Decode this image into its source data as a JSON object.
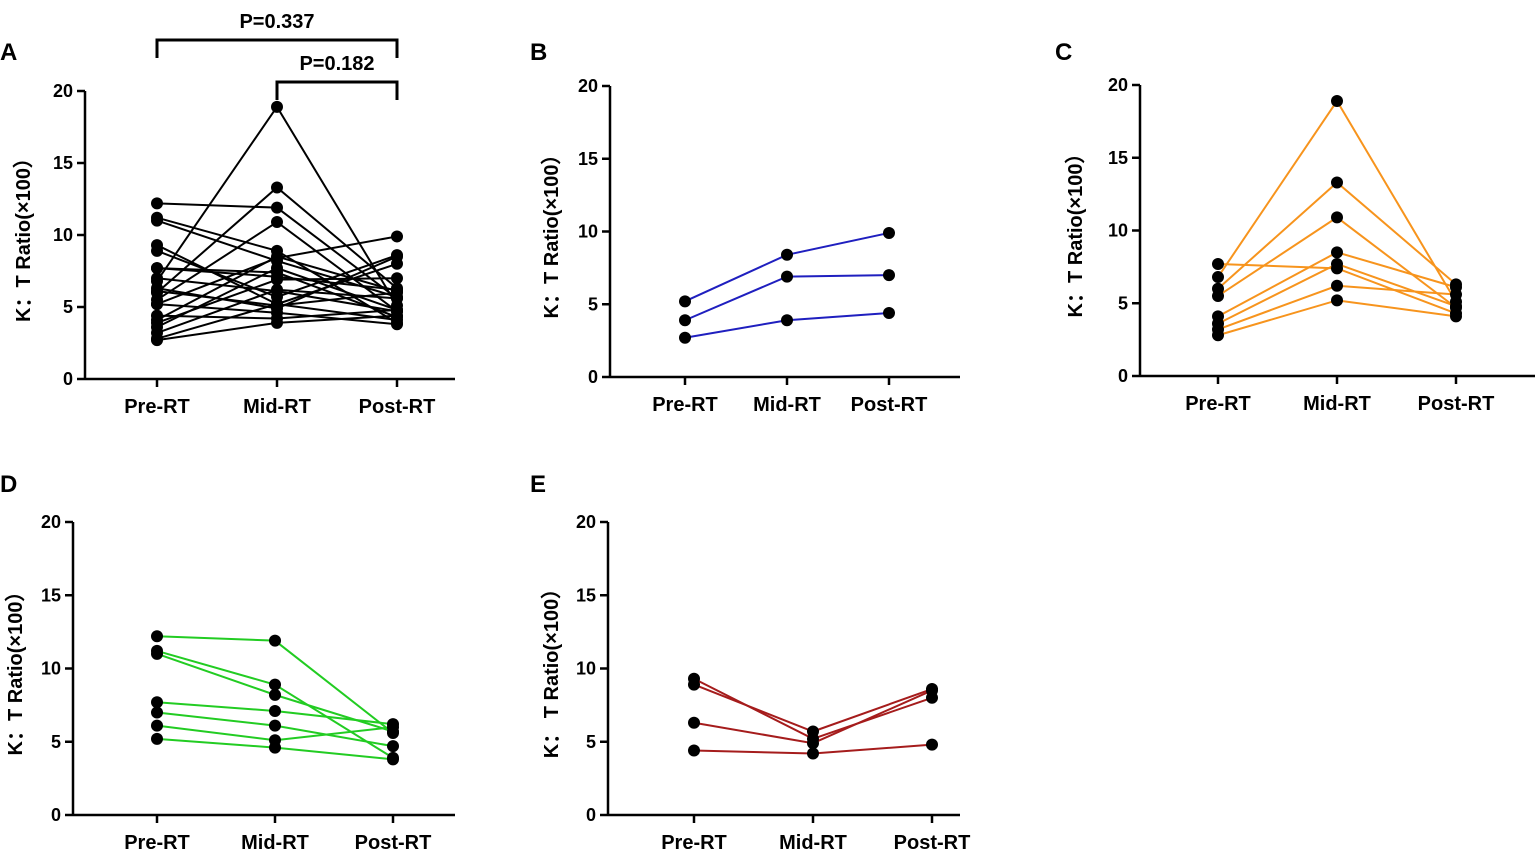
{
  "chart_data": [
    {
      "panel": "A",
      "type": "line",
      "categories": [
        "Pre-RT",
        "Mid-RT",
        "Post-RT"
      ],
      "ylabel": "K：T Ratio(×100）",
      "ylim": [
        0,
        20
      ],
      "yticks": [
        "0",
        "5",
        "10",
        "15",
        "20"
      ],
      "color": "#000000",
      "annotations": [
        {
          "text": "P=0.337",
          "from": "Pre-RT",
          "to": "Post-RT"
        },
        {
          "text": "P=0.182",
          "from": "Mid-RT",
          "to": "Post-RT"
        }
      ],
      "series": [
        {
          "values": [
            5.2,
            8.4,
            9.9
          ]
        },
        {
          "values": [
            3.9,
            6.9,
            7.0
          ]
        },
        {
          "values": [
            2.7,
            3.9,
            4.4
          ]
        },
        {
          "values": [
            7.7,
            7.4,
            4.3
          ]
        },
        {
          "values": [
            6.8,
            18.9,
            5.1
          ]
        },
        {
          "values": [
            6.0,
            13.3,
            6.3
          ]
        },
        {
          "values": [
            5.5,
            10.9,
            4.7
          ]
        },
        {
          "values": [
            4.1,
            8.5,
            6.1
          ]
        },
        {
          "values": [
            3.6,
            7.7,
            4.8
          ]
        },
        {
          "values": [
            3.2,
            6.2,
            5.6
          ]
        },
        {
          "values": [
            2.8,
            5.2,
            4.1
          ]
        },
        {
          "values": [
            12.2,
            11.9,
            5.6
          ]
        },
        {
          "values": [
            11.2,
            8.9,
            3.9
          ]
        },
        {
          "values": [
            11.0,
            8.2,
            5.7
          ]
        },
        {
          "values": [
            7.7,
            7.1,
            6.2
          ]
        },
        {
          "values": [
            7.0,
            6.1,
            4.7
          ]
        },
        {
          "values": [
            6.1,
            5.1,
            6.0
          ]
        },
        {
          "values": [
            5.2,
            4.6,
            3.8
          ]
        },
        {
          "values": [
            9.3,
            5.2,
            8.0
          ]
        },
        {
          "values": [
            8.9,
            5.7,
            8.6
          ]
        },
        {
          "values": [
            6.3,
            4.9,
            8.5
          ]
        },
        {
          "values": [
            4.4,
            4.2,
            4.8
          ]
        }
      ]
    },
    {
      "panel": "B",
      "type": "line",
      "categories": [
        "Pre-RT",
        "Mid-RT",
        "Post-RT"
      ],
      "ylabel": "K：T Ratio(×100）",
      "ylim": [
        0,
        20
      ],
      "yticks": [
        "0",
        "5",
        "10",
        "15",
        "20"
      ],
      "color": "#1f1fbf",
      "series": [
        {
          "values": [
            5.2,
            8.4,
            9.9
          ]
        },
        {
          "values": [
            3.9,
            6.9,
            7.0
          ]
        },
        {
          "values": [
            2.7,
            3.9,
            4.4
          ]
        }
      ]
    },
    {
      "panel": "C",
      "type": "line",
      "categories": [
        "Pre-RT",
        "Mid-RT",
        "Post-RT"
      ],
      "ylabel": "K：T Ratio(×100）",
      "ylim": [
        0,
        20
      ],
      "yticks": [
        "0",
        "5",
        "10",
        "15",
        "20"
      ],
      "color": "#f7941d",
      "series": [
        {
          "values": [
            7.7,
            7.4,
            4.3
          ]
        },
        {
          "values": [
            6.8,
            18.9,
            5.1
          ]
        },
        {
          "values": [
            6.0,
            13.3,
            6.3
          ]
        },
        {
          "values": [
            5.5,
            10.9,
            4.7
          ]
        },
        {
          "values": [
            4.1,
            8.5,
            6.1
          ]
        },
        {
          "values": [
            3.6,
            7.7,
            4.8
          ]
        },
        {
          "values": [
            3.2,
            6.2,
            5.6
          ]
        },
        {
          "values": [
            2.8,
            5.2,
            4.1
          ]
        }
      ]
    },
    {
      "panel": "D",
      "type": "line",
      "categories": [
        "Pre-RT",
        "Mid-RT",
        "Post-RT"
      ],
      "ylabel": "K：T Ratio(×100）",
      "ylim": [
        0,
        20
      ],
      "yticks": [
        "0",
        "5",
        "10",
        "15",
        "20"
      ],
      "color": "#22cc22",
      "series": [
        {
          "values": [
            12.2,
            11.9,
            5.6
          ]
        },
        {
          "values": [
            11.2,
            8.9,
            3.9
          ]
        },
        {
          "values": [
            11.0,
            8.2,
            5.7
          ]
        },
        {
          "values": [
            7.7,
            7.1,
            6.2
          ]
        },
        {
          "values": [
            7.0,
            6.1,
            4.7
          ]
        },
        {
          "values": [
            6.1,
            5.1,
            6.0
          ]
        },
        {
          "values": [
            5.2,
            4.6,
            3.8
          ]
        }
      ]
    },
    {
      "panel": "E",
      "type": "line",
      "categories": [
        "Pre-RT",
        "Mid-RT",
        "Post-RT"
      ],
      "ylabel": "K： T Ratio(×100）",
      "ylim": [
        0,
        20
      ],
      "yticks": [
        "0",
        "5",
        "10",
        "15",
        "20"
      ],
      "color": "#a51c1c",
      "series": [
        {
          "values": [
            9.3,
            5.2,
            8.0
          ]
        },
        {
          "values": [
            8.9,
            5.7,
            8.6
          ]
        },
        {
          "values": [
            6.3,
            4.9,
            8.5
          ]
        },
        {
          "values": [
            4.4,
            4.2,
            4.8
          ]
        }
      ]
    }
  ]
}
